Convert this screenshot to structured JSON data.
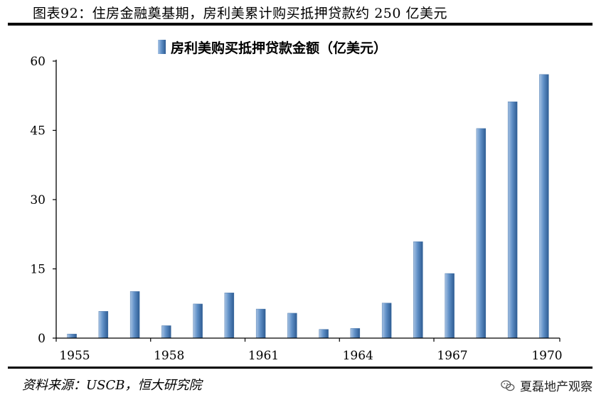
{
  "header": {
    "title": "图表92：住房金融奠基期，房利美累计购买抵押贷款约 250 亿美元"
  },
  "footer": {
    "source": "资料来源：USCB，恒大研究院",
    "brand": "夏磊地产观察",
    "brand_icon": "wechat-icon"
  },
  "colors": {
    "bar_light": "#a7c3e4",
    "bar_mid": "#5f8fc6",
    "bar_dark": "#2e5c93",
    "axis": "#000000"
  },
  "chart_data": {
    "type": "bar",
    "legend": {
      "label": "房利美购买抵押贷款金额（亿美元）",
      "position": "top-center"
    },
    "categories": [
      "1955",
      "1956",
      "1957",
      "1958",
      "1959",
      "1960",
      "1961",
      "1962",
      "1963",
      "1964",
      "1965",
      "1966",
      "1967",
      "1968",
      "1969",
      "1970"
    ],
    "series": [
      {
        "name": "房利美购买抵押贷款金额（亿美元）",
        "values": [
          0.9,
          5.8,
          10.1,
          2.7,
          7.4,
          9.8,
          6.3,
          5.4,
          1.9,
          2.1,
          7.6,
          20.9,
          14.0,
          45.4,
          51.2,
          57.1
        ]
      }
    ],
    "x_tick_labels": [
      "1955",
      "1958",
      "1961",
      "1964",
      "1967",
      "1970"
    ],
    "y_ticks": [
      0,
      15,
      30,
      45,
      60
    ],
    "ylim": [
      0,
      60
    ],
    "grid": false
  }
}
